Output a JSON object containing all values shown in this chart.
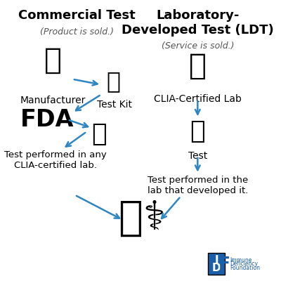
{
  "bg_color": "#ffffff",
  "title_left": "Commercial Test",
  "subtitle_left": "(Product is sold.)",
  "title_right": "Laboratory-\nDeveloped Test (LDT)",
  "subtitle_right": "(Service is sold.)",
  "label_manufacturer": "Manufacturer",
  "label_testkit": "Test Kit",
  "label_clia_lab": "CLIA-Certified Lab",
  "label_test": "Test",
  "label_bottom_left": "Test performed in any\nCLIA-certified lab.",
  "label_bottom_right": "Test performed in the\nlab that developed it.",
  "arrow_color": "#2e86c1",
  "title_fontsize": 13,
  "subtitle_fontsize": 9,
  "label_fontsize": 10,
  "idf_color": "#1a5fa8"
}
